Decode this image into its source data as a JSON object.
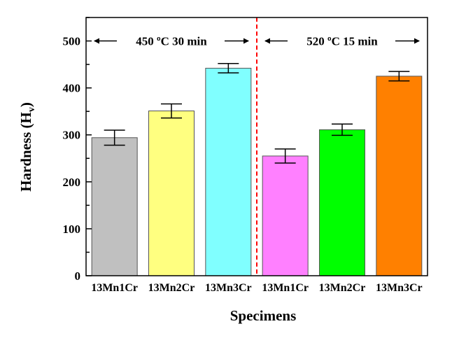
{
  "chart_data": {
    "type": "bar",
    "title": "",
    "xlabel": "Specimens",
    "ylabel": "Hardness (H",
    "ylabel_sub": "v",
    "ylabel_close": ")",
    "ylim": [
      0,
      550
    ],
    "yticks": [
      0,
      100,
      200,
      300,
      400,
      500
    ],
    "grid": false,
    "categories": [
      "13Mn1Cr",
      "13Mn2Cr",
      "13Mn3Cr",
      "13Mn1Cr",
      "13Mn2Cr",
      "13Mn3Cr"
    ],
    "values": [
      294,
      351,
      442,
      255,
      311,
      425
    ],
    "errors": [
      16,
      15,
      10,
      15,
      12,
      10
    ],
    "colors": [
      "#c0c0c0",
      "#ffff80",
      "#80ffff",
      "#ff80ff",
      "#00ff00",
      "#ff8000"
    ],
    "groups": [
      {
        "label": "450 ºC 30 min",
        "categories": [
          0,
          1,
          2
        ]
      },
      {
        "label": "520 ºC 15 min",
        "categories": [
          3,
          4,
          5
        ]
      }
    ],
    "separator_color": "#ff0000"
  }
}
